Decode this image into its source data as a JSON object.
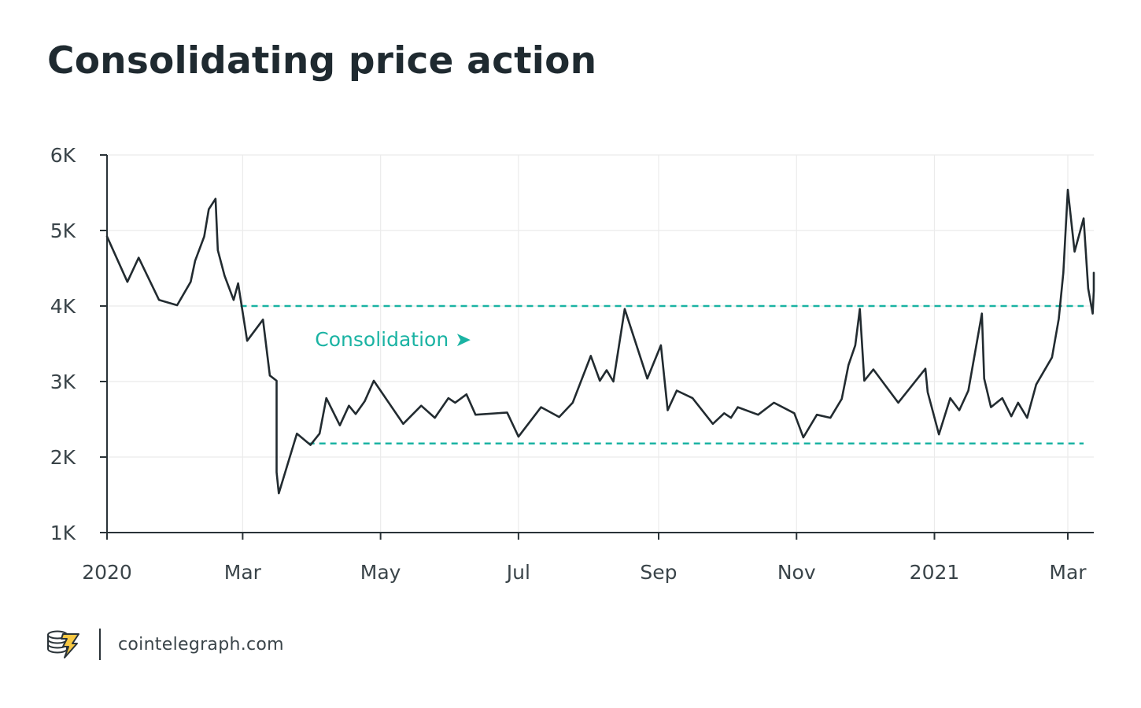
{
  "title": "Consolidating price action",
  "footer": {
    "site": "cointelegraph.com"
  },
  "colors": {
    "line": "#222b30",
    "band": "#1ab3a3",
    "grid": "#ebebeb",
    "axis": "#2a3338",
    "text": "#3a4449"
  },
  "chart_data": {
    "type": "line",
    "title": "Consolidating price action",
    "xlabel": "",
    "ylabel": "",
    "ylim": [
      1000,
      6000
    ],
    "y_ticks": [
      1000,
      2000,
      3000,
      4000,
      5000,
      6000
    ],
    "y_tick_labels": [
      "1K",
      "2K",
      "3K",
      "4K",
      "5K",
      "6K"
    ],
    "x_domain": [
      "2020-01-01",
      "2021-03-08"
    ],
    "x_ticks": [
      {
        "date": "2020-01-01",
        "label": "2020"
      },
      {
        "date": "2020-03-01",
        "label": "Mar"
      },
      {
        "date": "2020-05-01",
        "label": "May"
      },
      {
        "date": "2020-07-01",
        "label": "Jul"
      },
      {
        "date": "2020-09-01",
        "label": "Sep"
      },
      {
        "date": "2020-11-01",
        "label": "Nov"
      },
      {
        "date": "2021-01-01",
        "label": "2021"
      },
      {
        "date": "2021-03-01",
        "label": "Mar"
      }
    ],
    "bands": [
      {
        "name": "upper",
        "value": 4000,
        "from": "2020-02-29",
        "to": "2021-03-08"
      },
      {
        "name": "lower",
        "value": 2180,
        "from": "2020-03-30",
        "to": "2021-03-08"
      }
    ],
    "annotation": {
      "text": "Consolidation ➤",
      "date": "2020-04-02",
      "value": 3470
    },
    "series": [
      {
        "name": "Price",
        "points": [
          [
            "2020-01-01",
            4920
          ],
          [
            "2020-01-10",
            4320
          ],
          [
            "2020-01-15",
            4640
          ],
          [
            "2020-01-24",
            4080
          ],
          [
            "2020-02-01",
            4010
          ],
          [
            "2020-02-07",
            4320
          ],
          [
            "2020-02-09",
            4600
          ],
          [
            "2020-02-13",
            4920
          ],
          [
            "2020-02-15",
            5280
          ],
          [
            "2020-02-18",
            5420
          ],
          [
            "2020-02-19",
            4740
          ],
          [
            "2020-02-22",
            4400
          ],
          [
            "2020-02-26",
            4080
          ],
          [
            "2020-02-28",
            4300
          ],
          [
            "2020-03-03",
            3540
          ],
          [
            "2020-03-10",
            3820
          ],
          [
            "2020-03-13",
            3080
          ],
          [
            "2020-03-16",
            3010
          ],
          [
            "2020-03-16",
            1800
          ],
          [
            "2020-03-17",
            1520
          ],
          [
            "2020-03-25",
            2310
          ],
          [
            "2020-03-31",
            2160
          ],
          [
            "2020-04-04",
            2310
          ],
          [
            "2020-04-07",
            2780
          ],
          [
            "2020-04-13",
            2420
          ],
          [
            "2020-04-17",
            2680
          ],
          [
            "2020-04-20",
            2570
          ],
          [
            "2020-04-24",
            2740
          ],
          [
            "2020-04-28",
            3010
          ],
          [
            "2020-05-11",
            2440
          ],
          [
            "2020-05-19",
            2680
          ],
          [
            "2020-05-25",
            2520
          ],
          [
            "2020-05-31",
            2780
          ],
          [
            "2020-06-03",
            2720
          ],
          [
            "2020-06-08",
            2830
          ],
          [
            "2020-06-12",
            2560
          ],
          [
            "2020-06-26",
            2590
          ],
          [
            "2020-07-01",
            2270
          ],
          [
            "2020-07-11",
            2660
          ],
          [
            "2020-07-19",
            2530
          ],
          [
            "2020-07-25",
            2720
          ],
          [
            "2020-08-02",
            3340
          ],
          [
            "2020-08-06",
            3010
          ],
          [
            "2020-08-09",
            3150
          ],
          [
            "2020-08-12",
            3000
          ],
          [
            "2020-08-17",
            3960
          ],
          [
            "2020-08-27",
            3040
          ],
          [
            "2020-09-02",
            3480
          ],
          [
            "2020-09-05",
            2620
          ],
          [
            "2020-09-09",
            2880
          ],
          [
            "2020-09-16",
            2780
          ],
          [
            "2020-09-25",
            2440
          ],
          [
            "2020-09-30",
            2580
          ],
          [
            "2020-10-03",
            2520
          ],
          [
            "2020-10-06",
            2660
          ],
          [
            "2020-10-15",
            2560
          ],
          [
            "2020-10-22",
            2720
          ],
          [
            "2020-10-31",
            2580
          ],
          [
            "2020-11-04",
            2260
          ],
          [
            "2020-11-10",
            2560
          ],
          [
            "2020-11-16",
            2520
          ],
          [
            "2020-11-21",
            2770
          ],
          [
            "2020-11-24",
            3220
          ],
          [
            "2020-11-27",
            3480
          ],
          [
            "2020-11-29",
            3960
          ],
          [
            "2020-12-01",
            3010
          ],
          [
            "2020-12-05",
            3160
          ],
          [
            "2020-12-16",
            2720
          ],
          [
            "2020-12-28",
            3170
          ],
          [
            "2020-12-29",
            2860
          ],
          [
            "2021-01-03",
            2300
          ],
          [
            "2021-01-08",
            2780
          ],
          [
            "2021-01-12",
            2620
          ],
          [
            "2021-01-16",
            2880
          ],
          [
            "2021-01-22",
            3900
          ],
          [
            "2021-01-23",
            3040
          ],
          [
            "2021-01-26",
            2660
          ],
          [
            "2021-01-31",
            2780
          ],
          [
            "2021-02-04",
            2540
          ],
          [
            "2021-02-07",
            2720
          ],
          [
            "2021-02-11",
            2520
          ],
          [
            "2021-02-15",
            2960
          ],
          [
            "2021-02-22",
            3320
          ],
          [
            "2021-02-25",
            3830
          ],
          [
            "2021-02-27",
            4440
          ],
          [
            "2021-03-01",
            5540
          ],
          [
            "2021-03-04",
            4720
          ],
          [
            "2021-03-08",
            5160
          ],
          [
            "2021-03-10",
            4230
          ],
          [
            "2021-03-12",
            3900
          ],
          [
            "2021-03-17",
            4200
          ],
          [
            "2021-03-22",
            4440
          ],
          [
            "2021-03-25",
            4260
          ],
          [
            "2021-03-29",
            4440
          ]
        ]
      }
    ]
  }
}
